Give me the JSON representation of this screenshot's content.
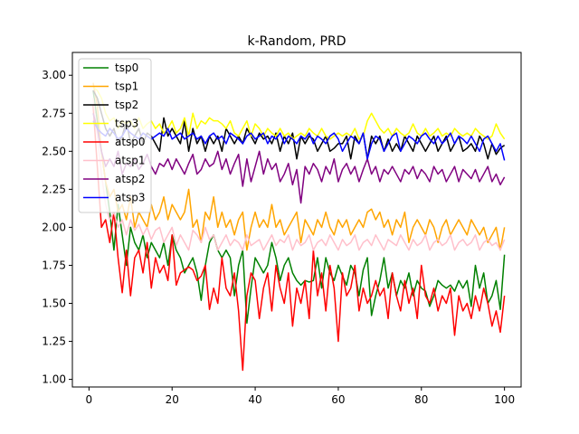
{
  "chart_data": {
    "type": "line",
    "title": "k-Random, PRD",
    "xlabel": "",
    "ylabel": "",
    "xlim": [
      -4,
      104
    ],
    "ylim": [
      0.95,
      3.15
    ],
    "xticks": [
      0,
      20,
      40,
      60,
      80,
      100
    ],
    "xtick_labels": [
      "0",
      "20",
      "40",
      "60",
      "80",
      "100"
    ],
    "yticks": [
      1.0,
      1.25,
      1.5,
      1.75,
      2.0,
      2.25,
      2.5,
      2.75,
      3.0
    ],
    "ytick_labels": [
      "1.00",
      "1.25",
      "1.50",
      "1.75",
      "2.00",
      "2.25",
      "2.50",
      "2.75",
      "3.00"
    ],
    "grid": false,
    "legend_position": "top-left",
    "x": [
      1,
      2,
      3,
      4,
      5,
      6,
      7,
      8,
      9,
      10,
      11,
      12,
      13,
      14,
      15,
      16,
      17,
      18,
      19,
      20,
      21,
      22,
      23,
      24,
      25,
      26,
      27,
      28,
      29,
      30,
      31,
      32,
      33,
      34,
      35,
      36,
      37,
      38,
      39,
      40,
      41,
      42,
      43,
      44,
      45,
      46,
      47,
      48,
      49,
      50,
      51,
      52,
      53,
      54,
      55,
      56,
      57,
      58,
      59,
      60,
      61,
      62,
      63,
      64,
      65,
      66,
      67,
      68,
      69,
      70,
      71,
      72,
      73,
      74,
      75,
      76,
      77,
      78,
      79,
      80,
      81,
      82,
      83,
      84,
      85,
      86,
      87,
      88,
      89,
      90,
      91,
      92,
      93,
      94,
      95,
      96,
      97,
      98,
      99,
      100
    ],
    "series": [
      {
        "name": "tsp0",
        "color": "#008000",
        "values": [
          2.9,
          2.7,
          2.5,
          2.3,
          2.1,
          1.85,
          2.15,
          1.95,
          1.75,
          2.0,
          1.9,
          1.85,
          1.95,
          1.8,
          1.9,
          1.85,
          1.8,
          1.9,
          1.75,
          1.95,
          1.85,
          1.8,
          1.7,
          1.75,
          1.8,
          1.7,
          1.52,
          1.75,
          1.9,
          1.95,
          1.85,
          1.8,
          1.85,
          1.8,
          1.55,
          1.75,
          1.85,
          1.37,
          1.6,
          1.8,
          1.75,
          1.7,
          1.75,
          1.9,
          1.8,
          1.65,
          1.75,
          1.8,
          1.7,
          1.65,
          1.62,
          1.65,
          1.64,
          1.65,
          1.8,
          1.6,
          1.8,
          1.7,
          1.65,
          1.75,
          1.68,
          1.62,
          1.75,
          1.7,
          1.55,
          1.72,
          1.8,
          1.42,
          1.55,
          1.65,
          1.8,
          1.6,
          1.7,
          1.55,
          1.65,
          1.6,
          1.7,
          1.55,
          1.65,
          1.6,
          1.58,
          1.48,
          1.55,
          1.65,
          1.62,
          1.6,
          1.62,
          1.58,
          1.65,
          1.6,
          1.65,
          1.48,
          1.75,
          1.6,
          1.7,
          1.5,
          1.55,
          1.65,
          1.46,
          1.82
        ]
      },
      {
        "name": "tsp1",
        "color": "#ffa500",
        "values": [
          2.95,
          2.8,
          2.5,
          2.3,
          2.2,
          2.25,
          2.1,
          2.15,
          2.05,
          2.2,
          2.0,
          2.1,
          2.05,
          2.0,
          2.15,
          2.05,
          2.1,
          2.2,
          2.05,
          2.15,
          2.1,
          2.05,
          2.1,
          2.25,
          2.0,
          2.05,
          1.9,
          2.1,
          2.05,
          2.2,
          2.0,
          2.1,
          2.0,
          2.05,
          1.95,
          2.05,
          2.1,
          1.85,
          2.0,
          2.1,
          2.0,
          2.05,
          2.0,
          2.15,
          2.0,
          2.05,
          1.95,
          2.0,
          2.05,
          2.1,
          1.9,
          2.05,
          2.0,
          1.95,
          2.05,
          2.0,
          2.1,
          2.0,
          1.95,
          2.05,
          2.0,
          2.05,
          1.95,
          2.0,
          2.05,
          2.0,
          2.1,
          2.12,
          2.05,
          2.1,
          2.0,
          2.05,
          1.95,
          2.05,
          2.0,
          2.1,
          1.9,
          2.0,
          2.05,
          2.0,
          1.95,
          2.05,
          2.0,
          1.9,
          2.0,
          2.05,
          1.95,
          2.0,
          2.05,
          2.0,
          1.95,
          2.05,
          2.0,
          1.95,
          2.0,
          1.9,
          1.95,
          2.0,
          1.85,
          2.0
        ]
      },
      {
        "name": "tsp2",
        "color": "#000000",
        "values": [
          2.9,
          2.85,
          2.75,
          2.65,
          2.6,
          2.65,
          2.55,
          2.6,
          2.7,
          2.55,
          2.6,
          2.65,
          2.55,
          2.62,
          2.6,
          2.55,
          2.5,
          2.72,
          2.6,
          2.65,
          2.6,
          2.55,
          2.7,
          2.5,
          2.65,
          2.55,
          2.6,
          2.5,
          2.6,
          2.55,
          2.6,
          2.5,
          2.65,
          2.6,
          2.55,
          2.6,
          2.55,
          2.65,
          2.6,
          2.55,
          2.62,
          2.58,
          2.6,
          2.55,
          2.62,
          2.5,
          2.6,
          2.55,
          2.62,
          2.45,
          2.6,
          2.55,
          2.6,
          2.58,
          2.5,
          2.55,
          2.6,
          2.5,
          2.52,
          2.55,
          2.55,
          2.6,
          2.45,
          2.6,
          2.55,
          2.62,
          2.45,
          2.6,
          2.55,
          2.6,
          2.5,
          2.58,
          2.5,
          2.55,
          2.5,
          2.6,
          2.55,
          2.5,
          2.6,
          2.55,
          2.5,
          2.55,
          2.6,
          2.5,
          2.55,
          2.6,
          2.5,
          2.55,
          2.6,
          2.5,
          2.52,
          2.55,
          2.5,
          2.6,
          2.55,
          2.45,
          2.55,
          2.48,
          2.52,
          2.54
        ]
      },
      {
        "name": "tsp3",
        "color": "#ffff00",
        "values": [
          2.92,
          2.9,
          2.85,
          2.75,
          2.7,
          2.72,
          2.65,
          2.7,
          2.68,
          2.7,
          2.65,
          2.72,
          2.65,
          2.68,
          2.7,
          2.65,
          2.68,
          2.62,
          2.65,
          2.7,
          2.62,
          2.65,
          2.72,
          2.6,
          2.75,
          2.65,
          2.7,
          2.68,
          2.72,
          2.7,
          2.7,
          2.68,
          2.65,
          2.7,
          2.62,
          2.6,
          2.65,
          2.7,
          2.6,
          2.68,
          2.65,
          2.6,
          2.65,
          2.62,
          2.6,
          2.65,
          2.6,
          2.62,
          2.58,
          2.6,
          2.62,
          2.6,
          2.65,
          2.62,
          2.6,
          2.65,
          2.6,
          2.58,
          2.6,
          2.62,
          2.6,
          2.62,
          2.6,
          2.65,
          2.58,
          2.6,
          2.7,
          2.75,
          2.7,
          2.65,
          2.62,
          2.65,
          2.6,
          2.65,
          2.62,
          2.6,
          2.62,
          2.68,
          2.62,
          2.6,
          2.65,
          2.6,
          2.62,
          2.65,
          2.6,
          2.62,
          2.6,
          2.65,
          2.62,
          2.6,
          2.62,
          2.6,
          2.65,
          2.62,
          2.6,
          2.58,
          2.6,
          2.68,
          2.62,
          2.58
        ]
      },
      {
        "name": "atsp0",
        "color": "#ff0000",
        "values": [
          2.8,
          2.4,
          2.0,
          2.05,
          1.9,
          2.1,
          1.8,
          1.57,
          1.85,
          1.55,
          1.8,
          1.85,
          1.7,
          1.9,
          1.6,
          1.8,
          1.7,
          1.75,
          1.65,
          1.95,
          1.62,
          1.7,
          1.72,
          1.74,
          1.72,
          1.65,
          1.68,
          1.75,
          1.46,
          1.6,
          1.5,
          1.8,
          1.6,
          1.55,
          1.7,
          1.45,
          1.06,
          1.55,
          1.7,
          1.65,
          1.4,
          1.6,
          1.7,
          1.45,
          1.75,
          1.6,
          1.5,
          1.7,
          1.35,
          1.6,
          1.5,
          1.65,
          1.4,
          1.85,
          1.55,
          1.7,
          1.45,
          1.75,
          1.6,
          1.25,
          1.7,
          1.55,
          1.6,
          1.75,
          1.45,
          1.6,
          1.5,
          1.55,
          1.65,
          1.55,
          1.6,
          1.4,
          1.7,
          1.55,
          1.45,
          1.65,
          1.5,
          1.6,
          1.4,
          1.75,
          1.55,
          1.5,
          1.6,
          1.45,
          1.55,
          1.5,
          1.6,
          1.29,
          1.55,
          1.45,
          1.5,
          1.4,
          1.55,
          1.45,
          1.6,
          1.5,
          1.35,
          1.45,
          1.31,
          1.55
        ]
      },
      {
        "name": "atsp1",
        "color": "#ffc0cb",
        "values": [
          2.85,
          2.6,
          2.35,
          2.15,
          2.05,
          2.1,
          2.0,
          2.05,
          1.95,
          2.05,
          1.98,
          2.02,
          1.95,
          2.0,
          1.92,
          1.98,
          2.0,
          1.9,
          1.95,
          2.0,
          1.88,
          1.95,
          1.9,
          1.85,
          1.98,
          1.95,
          1.9,
          2.0,
          1.92,
          1.95,
          1.85,
          1.9,
          1.95,
          1.88,
          1.92,
          1.9,
          1.85,
          1.95,
          1.88,
          1.9,
          1.92,
          1.85,
          1.9,
          1.95,
          1.88,
          1.92,
          1.9,
          1.95,
          1.85,
          1.92,
          1.88,
          1.9,
          1.95,
          1.85,
          1.9,
          1.92,
          1.88,
          1.95,
          1.9,
          1.85,
          1.92,
          1.88,
          1.9,
          1.95,
          1.85,
          1.9,
          1.92,
          1.88,
          1.95,
          1.9,
          1.85,
          1.92,
          1.9,
          1.88,
          1.95,
          1.9,
          1.85,
          1.92,
          1.88,
          1.9,
          1.95,
          1.85,
          1.9,
          1.92,
          1.88,
          1.9,
          1.95,
          1.85,
          1.9,
          1.92,
          1.88,
          1.9,
          1.95,
          1.85,
          1.9,
          1.92,
          1.88,
          1.9,
          1.85,
          1.92
        ]
      },
      {
        "name": "atsp2",
        "color": "#800080",
        "values": [
          2.75,
          2.65,
          2.5,
          2.4,
          2.45,
          2.4,
          2.5,
          2.35,
          2.42,
          2.4,
          2.45,
          2.38,
          2.42,
          2.48,
          2.4,
          2.35,
          2.42,
          2.4,
          2.45,
          2.38,
          2.45,
          2.4,
          2.35,
          2.42,
          2.48,
          2.35,
          2.38,
          2.45,
          2.4,
          2.42,
          2.5,
          2.38,
          2.45,
          2.35,
          2.42,
          2.48,
          2.27,
          2.45,
          2.3,
          2.4,
          2.5,
          2.35,
          2.45,
          2.38,
          2.42,
          2.3,
          2.35,
          2.42,
          2.28,
          2.38,
          2.16,
          2.4,
          2.35,
          2.42,
          2.38,
          2.3,
          2.4,
          2.35,
          2.45,
          2.3,
          2.38,
          2.42,
          2.35,
          2.4,
          2.3,
          2.38,
          2.45,
          2.35,
          2.4,
          2.3,
          2.38,
          2.35,
          2.4,
          2.35,
          2.3,
          2.38,
          2.35,
          2.4,
          2.32,
          2.38,
          2.35,
          2.3,
          2.4,
          2.35,
          2.38,
          2.3,
          2.35,
          2.4,
          2.3,
          2.38,
          2.35,
          2.32,
          2.38,
          2.3,
          2.35,
          2.4,
          2.3,
          2.35,
          2.28,
          2.33
        ]
      },
      {
        "name": "atsp3",
        "color": "#0000ff",
        "values": [
          2.7,
          2.65,
          2.62,
          2.6,
          2.65,
          2.62,
          2.58,
          2.6,
          2.65,
          2.62,
          2.6,
          2.58,
          2.62,
          2.6,
          2.58,
          2.6,
          2.62,
          2.6,
          2.65,
          2.58,
          2.6,
          2.62,
          2.58,
          2.6,
          2.62,
          2.58,
          2.6,
          2.55,
          2.6,
          2.62,
          2.58,
          2.6,
          2.55,
          2.62,
          2.6,
          2.58,
          2.55,
          2.6,
          2.62,
          2.58,
          2.6,
          2.62,
          2.55,
          2.6,
          2.58,
          2.62,
          2.55,
          2.6,
          2.58,
          2.55,
          2.6,
          2.58,
          2.62,
          2.55,
          2.6,
          2.58,
          2.55,
          2.6,
          2.62,
          2.58,
          2.5,
          2.55,
          2.6,
          2.58,
          2.55,
          2.62,
          2.45,
          2.55,
          2.6,
          2.58,
          2.5,
          2.55,
          2.6,
          2.62,
          2.5,
          2.55,
          2.6,
          2.58,
          2.55,
          2.6,
          2.62,
          2.58,
          2.55,
          2.6,
          2.55,
          2.58,
          2.62,
          2.55,
          2.6,
          2.58,
          2.55,
          2.6,
          2.55,
          2.5,
          2.58,
          2.6,
          2.55,
          2.5,
          2.55,
          2.44
        ]
      }
    ]
  }
}
